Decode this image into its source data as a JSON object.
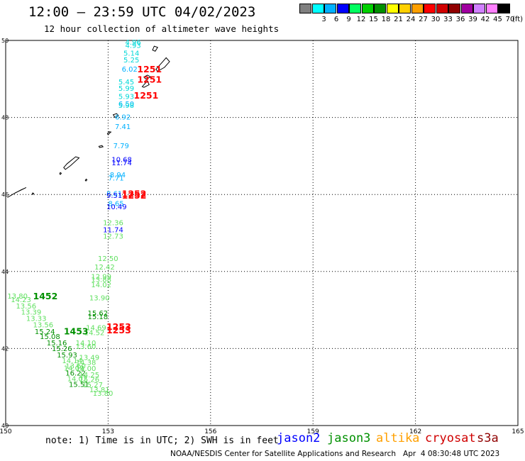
{
  "header": {
    "title": "12:00 – 23:59 UTC 04/02/2023",
    "subtitle": "12 hour collection of altimeter wave heights"
  },
  "color_scale": {
    "unit": "(ft)",
    "items": [
      {
        "label": "",
        "color": "#808080"
      },
      {
        "label": "3",
        "color": "#00ffff"
      },
      {
        "label": "6",
        "color": "#00b0ff"
      },
      {
        "label": "9",
        "color": "#0000ff"
      },
      {
        "label": "12",
        "color": "#00ff60"
      },
      {
        "label": "15",
        "color": "#00d000"
      },
      {
        "label": "18",
        "color": "#009000"
      },
      {
        "label": "21",
        "color": "#ffff00"
      },
      {
        "label": "24",
        "color": "#ffd000"
      },
      {
        "label": "27",
        "color": "#ffa000"
      },
      {
        "label": "30",
        "color": "#ff0000"
      },
      {
        "label": "33",
        "color": "#d00000"
      },
      {
        "label": "36",
        "color": "#900000"
      },
      {
        "label": "39",
        "color": "#a000a0"
      },
      {
        "label": "42",
        "color": "#d080ff"
      },
      {
        "label": "45",
        "color": "#ff80ff"
      },
      {
        "label": "70",
        "color": "#000000"
      }
    ]
  },
  "map": {
    "lon_min": 150,
    "lon_max": 165,
    "lat_min": 40,
    "lat_max": 50,
    "lon_ticks": [
      "150",
      "153",
      "156",
      "159",
      "162",
      "165"
    ],
    "lat_ticks": [
      "50",
      "48",
      "46",
      "44",
      "42",
      "40"
    ],
    "observations": [
      {
        "lon": 153.5,
        "lat": 49.89,
        "text": "4.96",
        "color": "#00d8d8"
      },
      {
        "lon": 153.5,
        "lat": 49.81,
        "text": "4.93",
        "color": "#00d8d8"
      },
      {
        "lon": 153.45,
        "lat": 49.6,
        "text": "5.14",
        "color": "#00d8d8"
      },
      {
        "lon": 153.45,
        "lat": 49.43,
        "text": "5.25",
        "color": "#00d8d8"
      },
      {
        "lon": 153.4,
        "lat": 49.19,
        "text": "6.02",
        "color": "#00b0ff"
      },
      {
        "lon": 153.3,
        "lat": 48.86,
        "text": "5.45",
        "color": "#00d8d8"
      },
      {
        "lon": 153.3,
        "lat": 48.69,
        "text": "5.99",
        "color": "#00d8d8"
      },
      {
        "lon": 153.3,
        "lat": 48.48,
        "text": "5.93",
        "color": "#00d8d8"
      },
      {
        "lon": 153.3,
        "lat": 48.29,
        "text": "6.50",
        "color": "#00b0ff"
      },
      {
        "lon": 153.3,
        "lat": 48.25,
        "text": "5.98",
        "color": "#00d8d8"
      },
      {
        "lon": 153.2,
        "lat": 47.95,
        "text": "6.92",
        "color": "#00b0ff"
      },
      {
        "lon": 153.2,
        "lat": 47.7,
        "text": "7.41",
        "color": "#00b0ff"
      },
      {
        "lon": 153.15,
        "lat": 47.2,
        "text": "7.79",
        "color": "#00b0ff"
      },
      {
        "lon": 153.1,
        "lat": 46.84,
        "text": "10.68",
        "color": "#0000ff"
      },
      {
        "lon": 153.1,
        "lat": 46.76,
        "text": "11.74",
        "color": "#0000ff"
      },
      {
        "lon": 153.05,
        "lat": 46.45,
        "text": "8.94",
        "color": "#00b0ff"
      },
      {
        "lon": 153.0,
        "lat": 46.36,
        "text": "7.71",
        "color": "#00b0ff"
      },
      {
        "lon": 152.95,
        "lat": 45.96,
        "text": "8.61",
        "color": "#00b0ff"
      },
      {
        "lon": 152.95,
        "lat": 45.91,
        "text": "9.51",
        "color": "#0000ff"
      },
      {
        "lon": 153.0,
        "lat": 45.7,
        "text": "8.65",
        "color": "#00b0ff"
      },
      {
        "lon": 152.95,
        "lat": 45.62,
        "text": "10.49",
        "color": "#0000ff"
      },
      {
        "lon": 152.85,
        "lat": 45.2,
        "text": "12.36",
        "color": "#60e060"
      },
      {
        "lon": 152.85,
        "lat": 45.02,
        "text": "11.74",
        "color": "#0000ff"
      },
      {
        "lon": 152.85,
        "lat": 44.85,
        "text": "12.73",
        "color": "#60e060"
      },
      {
        "lon": 152.7,
        "lat": 44.27,
        "text": "12.50",
        "color": "#60e060"
      },
      {
        "lon": 152.6,
        "lat": 44.05,
        "text": "12.42",
        "color": "#60e060"
      },
      {
        "lon": 152.5,
        "lat": 43.8,
        "text": "12.99",
        "color": "#60e060"
      },
      {
        "lon": 152.5,
        "lat": 43.73,
        "text": "13.88",
        "color": "#60e060"
      },
      {
        "lon": 152.5,
        "lat": 43.59,
        "text": "14.02",
        "color": "#60e060"
      },
      {
        "lon": 152.45,
        "lat": 43.25,
        "text": "13.90",
        "color": "#60e060"
      },
      {
        "lon": 152.4,
        "lat": 42.85,
        "text": "15.62",
        "color": "#009000"
      },
      {
        "lon": 152.4,
        "lat": 42.76,
        "text": "15.18",
        "color": "#009000"
      },
      {
        "lon": 152.35,
        "lat": 42.48,
        "text": "14.69",
        "color": "#60e060"
      },
      {
        "lon": 152.3,
        "lat": 42.35,
        "text": "14.52",
        "color": "#60e060"
      },
      {
        "lon": 150.05,
        "lat": 43.3,
        "text": "13.80",
        "color": "#60e060"
      },
      {
        "lon": 150.15,
        "lat": 43.2,
        "text": "14.23",
        "color": "#60e060"
      },
      {
        "lon": 150.3,
        "lat": 43.04,
        "text": "13.56",
        "color": "#60e060"
      },
      {
        "lon": 150.45,
        "lat": 42.88,
        "text": "13.39",
        "color": "#60e060"
      },
      {
        "lon": 150.6,
        "lat": 42.72,
        "text": "13.33",
        "color": "#60e060"
      },
      {
        "lon": 150.8,
        "lat": 42.55,
        "text": "13.56",
        "color": "#60e060"
      },
      {
        "lon": 150.85,
        "lat": 42.38,
        "text": "15.24",
        "color": "#009000"
      },
      {
        "lon": 151.0,
        "lat": 42.25,
        "text": "15.08",
        "color": "#009000"
      },
      {
        "lon": 151.2,
        "lat": 42.08,
        "text": "15.16",
        "color": "#009000"
      },
      {
        "lon": 151.35,
        "lat": 41.93,
        "text": "15.26",
        "color": "#009000"
      },
      {
        "lon": 151.5,
        "lat": 41.77,
        "text": "15.93",
        "color": "#009000"
      },
      {
        "lon": 151.65,
        "lat": 41.62,
        "text": "14.14",
        "color": "#60e060"
      },
      {
        "lon": 151.75,
        "lat": 41.48,
        "text": "13.60",
        "color": "#60e060"
      },
      {
        "lon": 151.7,
        "lat": 41.43,
        "text": "14.09",
        "color": "#60e060"
      },
      {
        "lon": 151.75,
        "lat": 41.3,
        "text": "16.22",
        "color": "#009000"
      },
      {
        "lon": 151.8,
        "lat": 41.15,
        "text": "14.02",
        "color": "#60e060"
      },
      {
        "lon": 151.85,
        "lat": 41.0,
        "text": "15.51",
        "color": "#009000"
      },
      {
        "lon": 152.05,
        "lat": 42.08,
        "text": "14.10",
        "color": "#60e060"
      },
      {
        "lon": 152.05,
        "lat": 41.99,
        "text": "13.60",
        "color": "#60e060"
      },
      {
        "lon": 152.15,
        "lat": 41.7,
        "text": "13.49",
        "color": "#60e060"
      },
      {
        "lon": 152.05,
        "lat": 41.57,
        "text": "14.38",
        "color": "#60e060"
      },
      {
        "lon": 152.05,
        "lat": 41.42,
        "text": "14.00",
        "color": "#60e060"
      },
      {
        "lon": 152.15,
        "lat": 41.25,
        "text": "14.25",
        "color": "#60e060"
      },
      {
        "lon": 152.15,
        "lat": 41.13,
        "text": "15.26",
        "color": "#60e060"
      },
      {
        "lon": 152.25,
        "lat": 40.99,
        "text": "15.27",
        "color": "#60e060"
      },
      {
        "lon": 152.45,
        "lat": 40.87,
        "text": "13.81",
        "color": "#60e060"
      },
      {
        "lon": 152.55,
        "lat": 40.77,
        "text": "13.80",
        "color": "#60e060"
      }
    ],
    "time_labels": [
      {
        "lon": 153.85,
        "lat": 49.17,
        "text": "1251",
        "color": "#ff0000"
      },
      {
        "lon": 153.85,
        "lat": 48.9,
        "text": "1251",
        "color": "#ff0000"
      },
      {
        "lon": 153.75,
        "lat": 48.49,
        "text": "1251",
        "color": "#ff0000"
      },
      {
        "lon": 153.4,
        "lat": 45.94,
        "text": "1252",
        "color": "#ff0000"
      },
      {
        "lon": 153.4,
        "lat": 45.89,
        "text": "1252",
        "color": "#ff0000"
      },
      {
        "lon": 150.8,
        "lat": 43.28,
        "text": "1452",
        "color": "#009000"
      },
      {
        "lon": 151.7,
        "lat": 42.37,
        "text": "1453",
        "color": "#009000"
      },
      {
        "lon": 152.95,
        "lat": 42.49,
        "text": "1253",
        "color": "#ff0000"
      },
      {
        "lon": 152.95,
        "lat": 42.39,
        "text": "1253",
        "color": "#ff0000"
      }
    ]
  },
  "footer": {
    "note": "note: 1) Time is in UTC; 2) SWH is in feet",
    "satellites": [
      {
        "name": "jason2",
        "color": "#0000ff"
      },
      {
        "name": "jason3",
        "color": "#009000"
      },
      {
        "name": "altika",
        "color": "#ffa000"
      },
      {
        "name": "cryosat",
        "color": "#d00000"
      },
      {
        "name": "s3a",
        "color": "#900000"
      }
    ],
    "credit": "NOAA/NESDIS Center for Satellite Applications and Research   Apr  4 08:30:48 UTC 2023"
  }
}
